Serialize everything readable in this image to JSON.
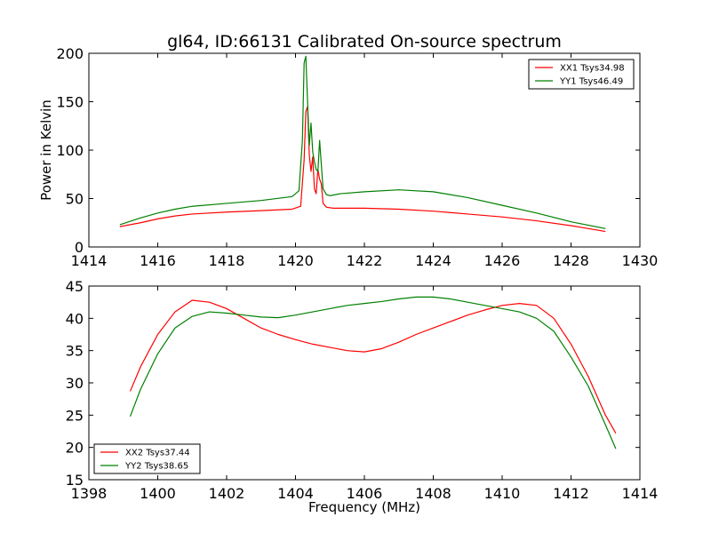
{
  "figure": {
    "title": "gl64, ID:66131 Calibrated On-source spectrum",
    "xlabel": "Frequency (MHz)"
  },
  "chart_data": [
    {
      "type": "line",
      "title": "gl64, ID:66131 Calibrated On-source spectrum",
      "xlabel": "",
      "ylabel": "Power in Kelvin",
      "xlim": [
        1414,
        1430
      ],
      "ylim": [
        0,
        200
      ],
      "xticks": [
        1414,
        1416,
        1418,
        1420,
        1422,
        1424,
        1426,
        1428,
        1430
      ],
      "yticks": [
        0,
        50,
        100,
        150,
        200
      ],
      "grid": false,
      "legend_position": "top-right",
      "series": [
        {
          "name": "XX1 Tsys34.98",
          "color": "#ff0000",
          "x": [
            1414.9,
            1415.5,
            1416,
            1416.5,
            1417,
            1418,
            1419,
            1419.9,
            1420.15,
            1420.25,
            1420.3,
            1420.35,
            1420.4,
            1420.45,
            1420.5,
            1420.55,
            1420.6,
            1420.65,
            1420.7,
            1420.75,
            1420.8,
            1420.9,
            1421.1,
            1422,
            1423,
            1424,
            1425,
            1426,
            1427,
            1428,
            1429
          ],
          "values": [
            21,
            25,
            29,
            32,
            34,
            36,
            37.5,
            39,
            42,
            90,
            140,
            145,
            95,
            78,
            93,
            60,
            55,
            80,
            70,
            65,
            45,
            41,
            40,
            40,
            39,
            37,
            34,
            31,
            27,
            22,
            16
          ]
        },
        {
          "name": "YY1 Tsys46.49",
          "color": "#008000",
          "x": [
            1414.9,
            1415.5,
            1416,
            1416.5,
            1417,
            1418,
            1419,
            1419.9,
            1420.1,
            1420.2,
            1420.25,
            1420.3,
            1420.35,
            1420.4,
            1420.45,
            1420.5,
            1420.55,
            1420.6,
            1420.65,
            1420.7,
            1420.75,
            1420.8,
            1420.9,
            1421,
            1421.3,
            1422,
            1423,
            1424,
            1425,
            1426,
            1427,
            1428,
            1429
          ],
          "values": [
            23,
            30,
            35,
            39,
            42,
            45,
            48,
            52,
            58,
            110,
            190,
            197,
            150,
            105,
            128,
            98,
            88,
            80,
            78,
            110,
            85,
            60,
            54,
            53,
            55,
            57,
            59,
            57,
            51,
            43,
            35,
            26,
            19
          ]
        }
      ]
    },
    {
      "type": "line",
      "xlabel": "Frequency (MHz)",
      "ylabel": "",
      "xlim": [
        1398,
        1414
      ],
      "ylim": [
        15,
        45
      ],
      "xticks": [
        1398,
        1400,
        1402,
        1404,
        1406,
        1408,
        1410,
        1412,
        1414
      ],
      "yticks": [
        15,
        20,
        25,
        30,
        35,
        40,
        45
      ],
      "grid": false,
      "legend_position": "bottom-left",
      "series": [
        {
          "name": "XX2 Tsys37.44",
          "color": "#ff0000",
          "x": [
            1399.2,
            1399.5,
            1400,
            1400.5,
            1401,
            1401.5,
            1402,
            1402.5,
            1403,
            1403.5,
            1404,
            1404.5,
            1405,
            1405.5,
            1406,
            1406.5,
            1407,
            1407.5,
            1408,
            1408.5,
            1409,
            1409.5,
            1410,
            1410.5,
            1411,
            1411.5,
            1412,
            1412.5,
            1413,
            1413.3
          ],
          "values": [
            28.7,
            32.5,
            37.5,
            41,
            42.8,
            42.5,
            41.5,
            40,
            38.5,
            37.5,
            36.7,
            36,
            35.5,
            35,
            34.8,
            35.3,
            36.3,
            37.5,
            38.5,
            39.5,
            40.5,
            41.3,
            42,
            42.3,
            42,
            40,
            36,
            31,
            25,
            22.2
          ]
        },
        {
          "name": "YY2 Tsys38.65",
          "color": "#008000",
          "x": [
            1399.2,
            1399.5,
            1400,
            1400.5,
            1401,
            1401.5,
            1402,
            1402.5,
            1403,
            1403.5,
            1404,
            1404.5,
            1405,
            1405.5,
            1406,
            1406.5,
            1407,
            1407.5,
            1408,
            1408.5,
            1409,
            1409.5,
            1410,
            1410.5,
            1411,
            1411.5,
            1412,
            1412.5,
            1413,
            1413.3
          ],
          "values": [
            24.8,
            29,
            34.5,
            38.5,
            40.3,
            41,
            40.8,
            40.5,
            40.2,
            40.1,
            40.5,
            41,
            41.5,
            42,
            42.3,
            42.6,
            43,
            43.3,
            43.3,
            43,
            42.5,
            42,
            41.5,
            41,
            40,
            38,
            34,
            29.5,
            23.5,
            19.8
          ]
        }
      ]
    }
  ]
}
